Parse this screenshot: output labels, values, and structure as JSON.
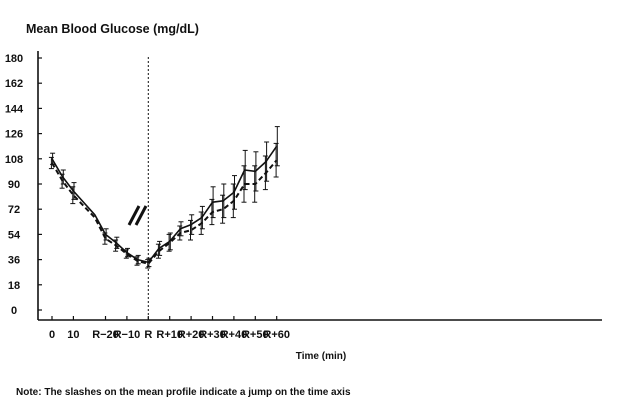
{
  "title": "Mean Blood Glucose (mg/dL)",
  "note": "Note: The slashes on the mean profile indicate a jump on the time axis",
  "colors": {
    "line": "#111111",
    "axis": "#111111"
  },
  "chart_data": {
    "type": "line",
    "title": "Mean Blood Glucose (mg/dL)",
    "xlabel": "Time (min)",
    "ylabel": "",
    "ylim": [
      0,
      180
    ],
    "yticks": [
      0,
      18,
      36,
      54,
      72,
      90,
      108,
      126,
      144,
      162,
      180
    ],
    "x_tick_labels": [
      "0",
      "10",
      "R−20",
      "R−10",
      "R",
      "R+10",
      "R+20",
      "R+30",
      "R+40",
      "R+50",
      "R+60"
    ],
    "axis_break": "slashes between 10 and R−20",
    "reference_line": "R (vertical dotted line)",
    "grid": false,
    "series": [
      {
        "style": "solid",
        "x": [
          0,
          5,
          10,
          "R−25",
          "R−20",
          "R−15",
          "R−10",
          "R−5",
          "R",
          "R+5",
          "R+10",
          "R+15",
          "R+20",
          "R+25",
          "R+30",
          "R+35",
          "R+40",
          "R+45",
          "R+50",
          "R+55",
          "R+60"
        ],
        "values": [
          108,
          95,
          85,
          68,
          54,
          48,
          41,
          36,
          34,
          44,
          49,
          58,
          61,
          66,
          77,
          78,
          84,
          100,
          99,
          106,
          117
        ],
        "error": [
          4,
          5,
          6,
          0,
          4,
          4,
          3,
          3,
          3,
          5,
          6,
          5,
          7,
          8,
          11,
          12,
          12,
          14,
          14,
          14,
          14
        ]
      },
      {
        "style": "dashed",
        "x": [
          0,
          5,
          10,
          "R−25",
          "R−20",
          "R−15",
          "R−10",
          "R−5",
          "R",
          "R+5",
          "R+10",
          "R+15",
          "R+20",
          "R+25",
          "R+30",
          "R+35",
          "R+40",
          "R+45",
          "R+50",
          "R+55",
          "R+60"
        ],
        "values": [
          105,
          92,
          82,
          66,
          51,
          46,
          40,
          35,
          33,
          42,
          48,
          55,
          57,
          62,
          70,
          72,
          78,
          90,
          90,
          98,
          107
        ],
        "error": [
          4,
          5,
          6,
          0,
          4,
          4,
          3,
          3,
          3,
          5,
          6,
          5,
          7,
          8,
          9,
          10,
          12,
          13,
          13,
          12,
          12
        ]
      }
    ]
  }
}
